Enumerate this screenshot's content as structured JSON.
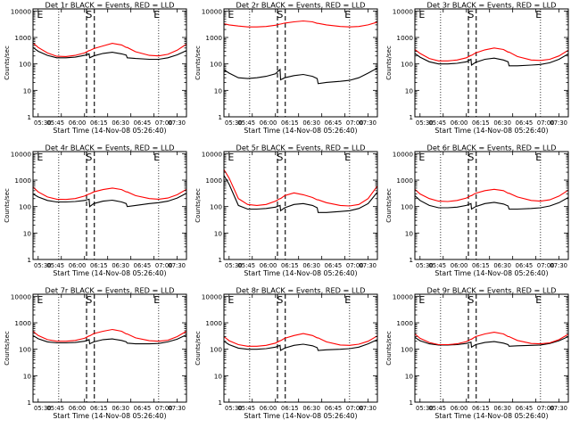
{
  "figure": {
    "x_ticks": [
      "05:30",
      "05:45",
      "06:00",
      "06:15",
      "06:30",
      "06:45",
      "07:00",
      "07:30"
    ],
    "xlabel": "Start Time (14-Nov-08 05:26:40)",
    "ylabel": "Counts/sec",
    "y_ticks": [
      "1",
      "10",
      "100",
      "1000",
      "10000"
    ],
    "colors": {
      "events": "#000000",
      "lld": "#ff0000",
      "axes": "#000000",
      "background": "#ffffff"
    }
  },
  "chart_data": [
    {
      "type": "line",
      "title": "Det 1r BLACK = Events, RED = LLD",
      "marker_labels": [
        {
          "text": "E",
          "x": 5.52
        },
        {
          "text": "S",
          "x": 6.05
        },
        {
          "text": "E",
          "x": 6.78
        }
      ],
      "x": [
        5.4444,
        5.5,
        5.6,
        5.7,
        5.8,
        5.9,
        6.0,
        6.05,
        6.056,
        6.1,
        6.2,
        6.3,
        6.4,
        6.45,
        6.461,
        6.55,
        6.7,
        6.8,
        6.9,
        7.0,
        7.1
      ],
      "xlim": [
        5.4444,
        7.1
      ],
      "ylim": [
        1,
        12000
      ],
      "y_scale": "log",
      "dashed_lines": [
        6.022,
        6.106
      ],
      "dotted_lines": [
        5.722,
        6.8
      ],
      "series": [
        {
          "name": "Events",
          "values": [
            420,
            300,
            210,
            170,
            170,
            180,
            210,
            240,
            170,
            200,
            250,
            275,
            240,
            215,
            170,
            160,
            150,
            150,
            170,
            220,
            320
          ]
        },
        {
          "name": "LLD",
          "values": [
            620,
            420,
            260,
            195,
            190,
            210,
            260,
            320,
            320,
            380,
            480,
            600,
            520,
            420,
            420,
            290,
            210,
            200,
            230,
            330,
            560
          ]
        }
      ]
    },
    {
      "type": "line",
      "title": "Det 2r BLACK = Events, RED = LLD",
      "marker_labels": [
        {
          "text": "E",
          "x": 5.52
        },
        {
          "text": "S",
          "x": 6.05
        },
        {
          "text": "E",
          "x": 6.78
        }
      ],
      "x": [
        5.4444,
        5.5,
        5.6,
        5.7,
        5.8,
        5.9,
        6.0,
        6.05,
        6.056,
        6.1,
        6.2,
        6.3,
        6.4,
        6.45,
        6.461,
        6.55,
        6.7,
        6.8,
        6.9,
        7.0,
        7.1
      ],
      "xlim": [
        5.4444,
        7.1
      ],
      "ylim": [
        1,
        12000
      ],
      "y_scale": "log",
      "dashed_lines": [
        6.022,
        6.106
      ],
      "dotted_lines": [
        5.722,
        6.8
      ],
      "series": [
        {
          "name": "Events",
          "values": [
            60,
            45,
            30,
            28,
            30,
            34,
            42,
            62,
            25,
            30,
            36,
            40,
            34,
            28,
            18,
            20,
            22,
            24,
            30,
            45,
            70
          ]
        },
        {
          "name": "LLD",
          "values": [
            3300,
            3000,
            2700,
            2500,
            2500,
            2600,
            2900,
            3200,
            3200,
            3500,
            3900,
            4200,
            3900,
            3400,
            3400,
            3000,
            2600,
            2500,
            2600,
            3000,
            3800
          ]
        }
      ]
    },
    {
      "type": "line",
      "title": "Det 3r BLACK = Events, RED = LLD",
      "marker_labels": [
        {
          "text": "E",
          "x": 5.52
        },
        {
          "text": "S",
          "x": 6.05
        },
        {
          "text": "E",
          "x": 6.78
        }
      ],
      "x": [
        5.4444,
        5.5,
        5.6,
        5.7,
        5.8,
        5.9,
        6.0,
        6.05,
        6.056,
        6.1,
        6.2,
        6.3,
        6.4,
        6.45,
        6.461,
        6.55,
        6.7,
        6.8,
        6.9,
        7.0,
        7.1
      ],
      "xlim": [
        5.4444,
        7.1
      ],
      "ylim": [
        1,
        12000
      ],
      "y_scale": "log",
      "dashed_lines": [
        6.022,
        6.106
      ],
      "dotted_lines": [
        5.722,
        6.8
      ],
      "series": [
        {
          "name": "Events",
          "values": [
            250,
            180,
            120,
            100,
            100,
            105,
            120,
            150,
            90,
            115,
            150,
            165,
            140,
            120,
            85,
            85,
            90,
            95,
            110,
            150,
            240
          ]
        },
        {
          "name": "LLD",
          "values": [
            350,
            250,
            160,
            130,
            130,
            140,
            170,
            210,
            210,
            260,
            340,
            400,
            350,
            280,
            280,
            190,
            140,
            135,
            150,
            200,
            330
          ]
        }
      ]
    },
    {
      "type": "line",
      "title": "Det 4r BLACK = Events, RED = LLD",
      "marker_labels": [
        {
          "text": "E",
          "x": 5.52
        },
        {
          "text": "S",
          "x": 6.05
        },
        {
          "text": "E",
          "x": 6.78
        }
      ],
      "x": [
        5.4444,
        5.5,
        5.6,
        5.7,
        5.8,
        5.9,
        6.0,
        6.05,
        6.056,
        6.1,
        6.2,
        6.3,
        6.4,
        6.45,
        6.461,
        6.55,
        6.7,
        6.8,
        6.9,
        7.0,
        7.1
      ],
      "xlim": [
        5.4444,
        7.1
      ],
      "ylim": [
        1,
        12000
      ],
      "y_scale": "log",
      "dashed_lines": [
        6.022,
        6.106
      ],
      "dotted_lines": [
        5.722,
        6.8
      ],
      "series": [
        {
          "name": "Events",
          "values": [
            300,
            230,
            170,
            150,
            150,
            155,
            170,
            190,
            100,
            130,
            160,
            175,
            150,
            130,
            100,
            110,
            130,
            140,
            160,
            210,
            320
          ]
        },
        {
          "name": "LLD",
          "values": [
            550,
            360,
            230,
            190,
            185,
            200,
            250,
            300,
            300,
            360,
            440,
            500,
            440,
            360,
            360,
            260,
            200,
            190,
            210,
            280,
            450
          ]
        }
      ]
    },
    {
      "type": "line",
      "title": "Det 5r BLACK = Events, RED = LLD",
      "marker_labels": [
        {
          "text": "E",
          "x": 5.52
        },
        {
          "text": "S",
          "x": 6.05
        },
        {
          "text": "E",
          "x": 6.78
        }
      ],
      "x": [
        5.4444,
        5.5,
        5.6,
        5.7,
        5.8,
        5.9,
        6.0,
        6.05,
        6.056,
        6.1,
        6.2,
        6.3,
        6.4,
        6.45,
        6.461,
        6.55,
        6.7,
        6.8,
        6.9,
        7.0,
        7.1
      ],
      "xlim": [
        5.4444,
        7.1
      ],
      "ylim": [
        1,
        12000
      ],
      "y_scale": "log",
      "dashed_lines": [
        6.022,
        6.106
      ],
      "dotted_lines": [
        5.722,
        6.8
      ],
      "series": [
        {
          "name": "Events",
          "values": [
            1500,
            700,
            110,
            80,
            80,
            85,
            95,
            110,
            70,
            90,
            120,
            130,
            110,
            90,
            60,
            60,
            65,
            70,
            85,
            130,
            350
          ]
        },
        {
          "name": "LLD",
          "values": [
            2500,
            1200,
            200,
            120,
            110,
            120,
            160,
            200,
            200,
            260,
            330,
            280,
            220,
            180,
            180,
            140,
            110,
            105,
            120,
            200,
            600
          ]
        }
      ]
    },
    {
      "type": "line",
      "title": "Det 6r BLACK = Events, RED = LLD",
      "marker_labels": [
        {
          "text": "E",
          "x": 5.52
        },
        {
          "text": "S",
          "x": 6.05
        },
        {
          "text": "E",
          "x": 6.78
        }
      ],
      "x": [
        5.4444,
        5.5,
        5.6,
        5.7,
        5.8,
        5.9,
        6.0,
        6.05,
        6.056,
        6.1,
        6.2,
        6.3,
        6.4,
        6.45,
        6.461,
        6.55,
        6.7,
        6.8,
        6.9,
        7.0,
        7.1
      ],
      "xlim": [
        5.4444,
        7.1
      ],
      "ylim": [
        1,
        12000
      ],
      "y_scale": "log",
      "dashed_lines": [
        6.022,
        6.106
      ],
      "dotted_lines": [
        5.722,
        6.8
      ],
      "series": [
        {
          "name": "Events",
          "values": [
            260,
            170,
            110,
            90,
            90,
            95,
            110,
            130,
            80,
            100,
            130,
            145,
            125,
            105,
            80,
            80,
            85,
            90,
            105,
            140,
            220
          ]
        },
        {
          "name": "LLD",
          "values": [
            450,
            300,
            200,
            160,
            155,
            170,
            210,
            260,
            260,
            320,
            400,
            450,
            400,
            320,
            320,
            230,
            170,
            160,
            180,
            250,
            420
          ]
        }
      ]
    },
    {
      "type": "line",
      "title": "Det 7r BLACK = Events, RED = LLD",
      "marker_labels": [
        {
          "text": "E",
          "x": 5.52
        },
        {
          "text": "S",
          "x": 6.05
        },
        {
          "text": "E",
          "x": 6.78
        }
      ],
      "x": [
        5.4444,
        5.5,
        5.6,
        5.7,
        5.8,
        5.9,
        6.0,
        6.05,
        6.056,
        6.1,
        6.2,
        6.3,
        6.4,
        6.45,
        6.461,
        6.55,
        6.7,
        6.8,
        6.9,
        7.0,
        7.1
      ],
      "xlim": [
        5.4444,
        7.1
      ],
      "ylim": [
        1,
        12000
      ],
      "y_scale": "log",
      "dashed_lines": [
        6.022,
        6.106
      ],
      "dotted_lines": [
        5.722,
        6.8
      ],
      "series": [
        {
          "name": "Events",
          "values": [
            330,
            250,
            190,
            175,
            175,
            180,
            200,
            230,
            160,
            190,
            230,
            245,
            215,
            190,
            170,
            160,
            160,
            165,
            190,
            240,
            350
          ]
        },
        {
          "name": "LLD",
          "values": [
            480,
            330,
            230,
            200,
            200,
            215,
            260,
            320,
            320,
            390,
            480,
            560,
            480,
            380,
            380,
            270,
            210,
            200,
            220,
            300,
            480
          ]
        }
      ]
    },
    {
      "type": "line",
      "title": "Det 8r BLACK = Events, RED = LLD",
      "marker_labels": [
        {
          "text": "E",
          "x": 5.52
        },
        {
          "text": "S",
          "x": 6.05
        },
        {
          "text": "E",
          "x": 6.78
        }
      ],
      "x": [
        5.4444,
        5.5,
        5.6,
        5.7,
        5.8,
        5.9,
        6.0,
        6.05,
        6.056,
        6.1,
        6.2,
        6.3,
        6.4,
        6.45,
        6.461,
        6.55,
        6.7,
        6.8,
        6.9,
        7.0,
        7.1
      ],
      "xlim": [
        5.4444,
        7.1
      ],
      "ylim": [
        1,
        12000
      ],
      "y_scale": "log",
      "dashed_lines": [
        6.022,
        6.106
      ],
      "dotted_lines": [
        5.722,
        6.8
      ],
      "series": [
        {
          "name": "Events",
          "values": [
            200,
            150,
            110,
            100,
            100,
            105,
            120,
            140,
            90,
            110,
            140,
            155,
            135,
            115,
            90,
            95,
            100,
            105,
            120,
            160,
            230
          ]
        },
        {
          "name": "LLD",
          "values": [
            300,
            210,
            150,
            130,
            130,
            140,
            170,
            210,
            210,
            260,
            330,
            390,
            330,
            270,
            270,
            190,
            145,
            140,
            155,
            200,
            320
          ]
        }
      ]
    },
    {
      "type": "line",
      "title": "Det 9r BLACK = Events, RED = LLD",
      "marker_labels": [
        {
          "text": "E",
          "x": 5.52
        },
        {
          "text": "S",
          "x": 6.05
        },
        {
          "text": "E",
          "x": 6.78
        }
      ],
      "x": [
        5.4444,
        5.5,
        5.6,
        5.7,
        5.8,
        5.9,
        6.0,
        6.05,
        6.056,
        6.1,
        6.2,
        6.3,
        6.4,
        6.45,
        6.461,
        6.55,
        6.7,
        6.8,
        6.9,
        7.0,
        7.1
      ],
      "xlim": [
        5.4444,
        7.1
      ],
      "ylim": [
        1,
        12000
      ],
      "y_scale": "log",
      "dashed_lines": [
        6.022,
        6.106
      ],
      "dotted_lines": [
        5.722,
        6.8
      ],
      "series": [
        {
          "name": "Events",
          "values": [
            280,
            210,
            160,
            145,
            145,
            150,
            165,
            185,
            120,
            150,
            180,
            195,
            170,
            150,
            130,
            135,
            140,
            145,
            165,
            210,
            300
          ]
        },
        {
          "name": "LLD",
          "values": [
            380,
            260,
            180,
            150,
            150,
            160,
            195,
            240,
            240,
            300,
            380,
            440,
            380,
            300,
            300,
            215,
            165,
            160,
            175,
            230,
            370
          ]
        }
      ]
    }
  ]
}
